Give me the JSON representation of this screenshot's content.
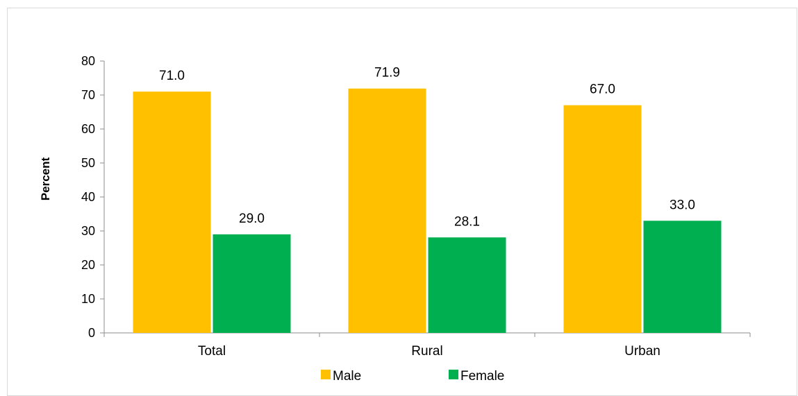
{
  "chart_data": {
    "type": "bar",
    "categories": [
      "Total",
      "Rural",
      "Urban"
    ],
    "series": [
      {
        "name": "Male",
        "values": [
          71.0,
          71.9,
          67.0
        ],
        "labels": [
          "71.0",
          "71.9",
          "67.0"
        ],
        "color": "#FFC000"
      },
      {
        "name": "Female",
        "values": [
          29.0,
          28.1,
          33.0
        ],
        "labels": [
          "29.0",
          "28.1",
          "33.0"
        ],
        "color": "#00B050"
      }
    ],
    "title": "",
    "xlabel": "",
    "ylabel": "Percent",
    "ylim": [
      0,
      80
    ],
    "yticks": [
      0,
      10,
      20,
      30,
      40,
      50,
      60,
      70,
      80
    ],
    "grid": false,
    "legend": "bottom-center"
  }
}
